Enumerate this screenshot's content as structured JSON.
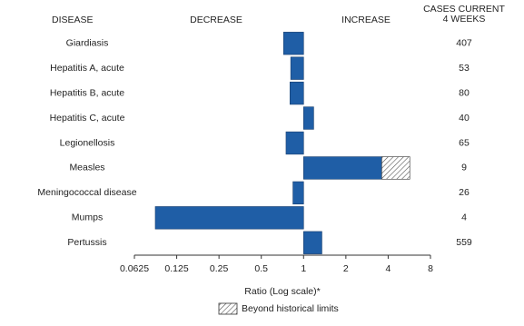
{
  "chart_data": {
    "type": "bar",
    "headers": {
      "disease": "DISEASE",
      "decrease": "DECREASE",
      "increase": "INCREASE",
      "cases": [
        "CASES CURRENT",
        "4 WEEKS"
      ]
    },
    "categories": [
      "Giardiasis",
      "Hepatitis A, acute",
      "Hepatitis B, acute",
      "Hepatitis C, acute",
      "Legionellosis",
      "Measles",
      "Meningococcal disease",
      "Mumps",
      "Pertussis"
    ],
    "values": [
      0.72,
      0.81,
      0.8,
      1.18,
      0.75,
      5.7,
      0.84,
      0.088,
      1.35
    ],
    "beyond_historical_limits": [
      null,
      null,
      null,
      null,
      null,
      3.6,
      null,
      null,
      null
    ],
    "cases_current_4_weeks": [
      407,
      53,
      80,
      40,
      65,
      9,
      26,
      4,
      559
    ],
    "color": "#1f5ea6",
    "log_scale": true,
    "base": 1,
    "xlim": [
      0.0625,
      8
    ],
    "xticks": [
      0.0625,
      0.125,
      0.25,
      0.5,
      1,
      2,
      4,
      8
    ],
    "xlabel": "Ratio (Log scale)*",
    "legend": "Beyond historical limits"
  }
}
